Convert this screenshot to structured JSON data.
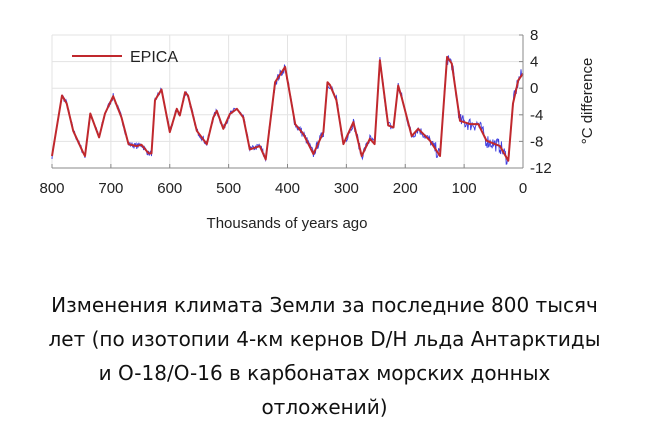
{
  "chart_data": {
    "type": "line",
    "title": "",
    "xlabel": "Thousands of years ago",
    "ylabel": "°C difference",
    "xlim": [
      800,
      0
    ],
    "ylim": [
      -12,
      8
    ],
    "x_ticks": [
      "800",
      "700",
      "600",
      "500",
      "400",
      "300",
      "200",
      "100",
      "0"
    ],
    "x_tick_values": [
      800,
      700,
      600,
      500,
      400,
      300,
      200,
      100,
      0
    ],
    "y_ticks": [
      "8",
      "4",
      "0",
      "-4",
      "-8",
      "-12"
    ],
    "y_tick_values": [
      8,
      4,
      0,
      -4,
      -8,
      -12
    ],
    "y_axis_side": "right",
    "grid": true,
    "legend": {
      "placement": "top-left",
      "entries": [
        "EPICA"
      ]
    },
    "series": [
      {
        "name": "EPICA",
        "color": "#c0282d",
        "x": [
          800,
          783,
          775,
          764,
          747,
          744,
          735,
          720,
          710,
          696,
          682,
          670,
          656,
          648,
          636,
          631,
          625,
          614,
          600,
          588,
          583,
          574,
          569,
          554,
          537,
          526,
          520,
          509,
          498,
          486,
          475,
          464,
          447,
          437,
          421,
          404,
          387,
          373,
          356,
          339,
          332,
          328,
          317,
          305,
          288,
          274,
          260,
          252,
          243,
          229,
          220,
          212,
          206,
          189,
          178,
          158,
          141,
          129,
          121,
          107,
          90,
          76,
          62,
          39,
          25,
          17,
          8,
          0
        ],
        "y": [
          -10.2,
          -1.1,
          -2.3,
          -6.4,
          -9.7,
          -10.2,
          -3.8,
          -7.4,
          -3.8,
          -1.2,
          -4.4,
          -8.4,
          -8.7,
          -8.5,
          -9.8,
          -9.8,
          -1.8,
          -0.2,
          -6.6,
          -3.1,
          -4.1,
          -0.6,
          -1.1,
          -6.4,
          -8.4,
          -4.4,
          -3.4,
          -6.1,
          -3.9,
          -3.1,
          -4.4,
          -9.2,
          -8.7,
          -10.7,
          0.9,
          3.2,
          -5.4,
          -6.9,
          -9.9,
          -6.6,
          0.9,
          0.5,
          -1.8,
          -8.4,
          -5.1,
          -10.2,
          -7.6,
          -8.4,
          4.2,
          -5.6,
          -5.9,
          0.4,
          -1.4,
          -7.2,
          -6.1,
          -7.9,
          -10.2,
          4.7,
          3.7,
          -4.9,
          -5.4,
          -5.4,
          -7.9,
          -8.7,
          -10.9,
          -2.3,
          1.2,
          2.2
        ]
      }
    ],
    "noisy_overlay_color": "#1a1adb"
  },
  "caption": {
    "lines": [
      "Изменения климата Земли за последние 800 тысяч",
      "лет (по изотопии 4-км кернов D/H льда Антарктиды",
      "и O-18/O-16 в карбонатах морских донных",
      "отложений)"
    ]
  }
}
